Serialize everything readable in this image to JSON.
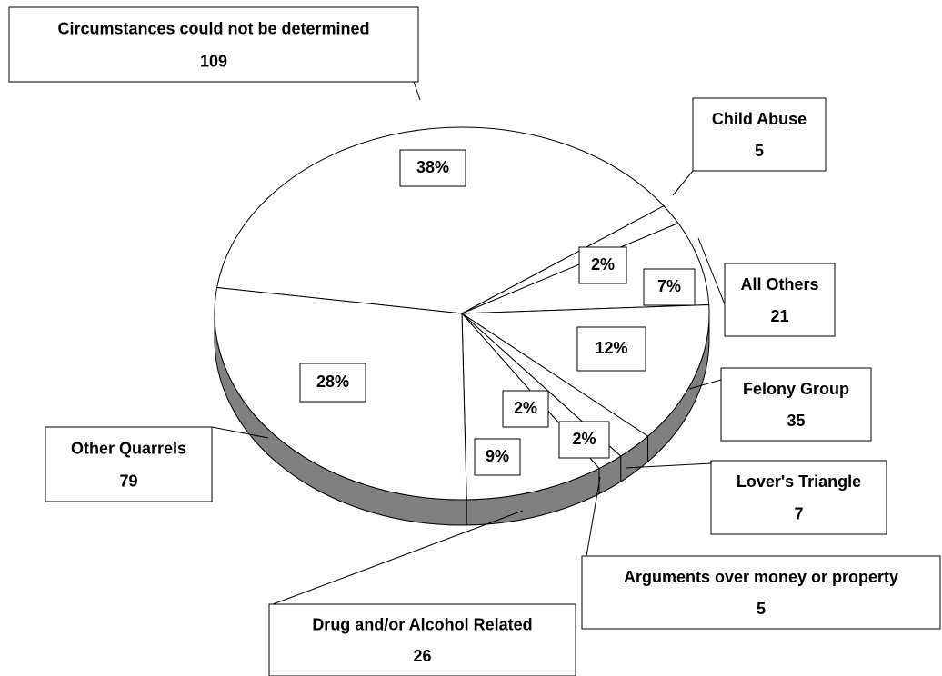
{
  "chart_data": {
    "type": "pie",
    "categories": [
      "Circumstances could not be determined",
      "Child Abuse",
      "All Others",
      "Felony Group",
      "Lover's Triangle",
      "Arguments over money or property",
      "Drug  and/or Alcohol Related",
      "Other Quarrels"
    ],
    "values": [
      109,
      5,
      21,
      35,
      7,
      5,
      26,
      79
    ],
    "percent_labels": [
      "38%",
      "2%",
      "7%",
      "12%",
      "2%",
      "2%",
      "9%",
      "28%"
    ],
    "color": "#ffffff",
    "side_color": "#808080"
  }
}
